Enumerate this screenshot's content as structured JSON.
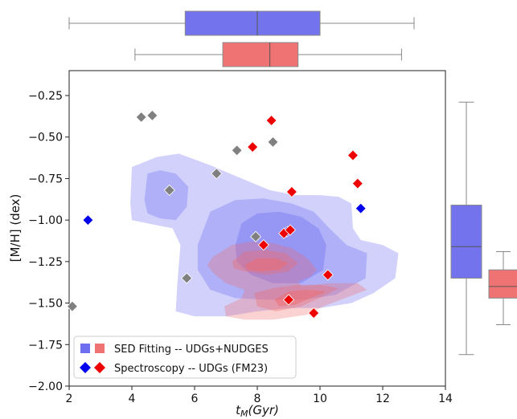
{
  "chart_data": {
    "type": "scatter",
    "xlabel_main": "t",
    "xlabel_sub": "M",
    "xlabel_unit": "(Gyr)",
    "ylabel": "[M/H] (dex)",
    "xlim": [
      2,
      14
    ],
    "ylim": [
      -2.0,
      -0.1
    ],
    "xticks": [
      2,
      4,
      6,
      8,
      10,
      12,
      14
    ],
    "yticks": [
      -2.0,
      -1.75,
      -1.5,
      -1.25,
      -1.0,
      -0.75,
      -0.5,
      -0.25
    ],
    "xtick_labels": [
      "2",
      "4",
      "6",
      "8",
      "10",
      "12",
      "14"
    ],
    "ytick_labels": [
      "−2.00",
      "−1.75",
      "−1.50",
      "−1.25",
      "−1.00",
      "−0.75",
      "−0.50",
      "−0.25"
    ],
    "grid": false,
    "legend_position": "bottom-left",
    "legend": [
      {
        "label": "SED Fitting -- UDGs+NUDGES",
        "marker": "square-pair",
        "colors": [
          "#6e6ef0",
          "#ef7373"
        ]
      },
      {
        "label": "Spectroscopy -- UDGs (FM23)",
        "marker": "diamond-pair",
        "colors": [
          "#0000ee",
          "#ee0000"
        ]
      }
    ],
    "colors": {
      "blue": "#0000ee",
      "red": "#ee0000",
      "gray": "#808080",
      "kde_blue": "#5b5bf0",
      "kde_red": "#f06b6b",
      "box_blue": "#7373ee",
      "box_red": "#ef7373"
    },
    "series": [
      {
        "color": "gray",
        "points": [
          [
            2.1,
            -1.52
          ],
          [
            4.3,
            -0.38
          ],
          [
            4.65,
            -0.37
          ],
          [
            5.2,
            -0.82
          ],
          [
            5.75,
            -1.35
          ],
          [
            6.7,
            -0.72
          ],
          [
            7.35,
            -0.58
          ],
          [
            7.95,
            -1.1
          ],
          [
            8.5,
            -0.53
          ]
        ]
      },
      {
        "color": "blue",
        "points": [
          [
            2.6,
            -1.0
          ],
          [
            8.95,
            -1.07
          ],
          [
            11.3,
            -0.93
          ]
        ]
      },
      {
        "color": "red",
        "points": [
          [
            7.85,
            -0.56
          ],
          [
            8.2,
            -1.15
          ],
          [
            8.45,
            -0.4
          ],
          [
            8.85,
            -1.08
          ],
          [
            9.05,
            -1.06
          ],
          [
            9.1,
            -0.83
          ],
          [
            9.0,
            -1.48
          ],
          [
            9.8,
            -1.56
          ],
          [
            10.25,
            -1.33
          ],
          [
            11.05,
            -0.61
          ],
          [
            11.2,
            -0.78
          ]
        ]
      }
    ],
    "kde_blue_levels": [
      {
        "alpha": 0.28,
        "polygon": [
          [
            3.95,
            -0.9
          ],
          [
            4.0,
            -0.68
          ],
          [
            4.8,
            -0.62
          ],
          [
            5.5,
            -0.6
          ],
          [
            6.5,
            -0.67
          ],
          [
            7.5,
            -0.75
          ],
          [
            8.4,
            -0.82
          ],
          [
            9.2,
            -0.85
          ],
          [
            10.0,
            -0.85
          ],
          [
            10.6,
            -0.86
          ],
          [
            11.0,
            -0.9
          ],
          [
            11.05,
            -1.05
          ],
          [
            11.3,
            -1.12
          ],
          [
            12.0,
            -1.15
          ],
          [
            12.5,
            -1.2
          ],
          [
            12.4,
            -1.35
          ],
          [
            11.7,
            -1.44
          ],
          [
            11.0,
            -1.5
          ],
          [
            10.0,
            -1.53
          ],
          [
            9.0,
            -1.53
          ],
          [
            8.0,
            -1.55
          ],
          [
            7.0,
            -1.58
          ],
          [
            6.0,
            -1.58
          ],
          [
            5.4,
            -1.55
          ],
          [
            5.45,
            -1.38
          ],
          [
            5.55,
            -1.15
          ],
          [
            5.3,
            -1.05
          ],
          [
            4.5,
            -1.02
          ],
          [
            4.0,
            -1.0
          ]
        ]
      },
      {
        "alpha": 0.28,
        "polygon": [
          [
            4.4,
            -0.88
          ],
          [
            4.5,
            -0.72
          ],
          [
            4.9,
            -0.7
          ],
          [
            5.4,
            -0.72
          ],
          [
            5.8,
            -0.8
          ],
          [
            5.75,
            -0.92
          ],
          [
            5.4,
            -1.0
          ],
          [
            4.9,
            -0.99
          ],
          [
            4.5,
            -0.96
          ]
        ]
      },
      {
        "alpha": 0.28,
        "polygon": [
          [
            6.1,
            -1.15
          ],
          [
            6.5,
            -0.95
          ],
          [
            7.3,
            -0.88
          ],
          [
            8.2,
            -0.87
          ],
          [
            9.1,
            -0.9
          ],
          [
            9.8,
            -0.95
          ],
          [
            10.3,
            -1.05
          ],
          [
            10.85,
            -1.15
          ],
          [
            11.5,
            -1.2
          ],
          [
            11.45,
            -1.35
          ],
          [
            10.5,
            -1.45
          ],
          [
            9.5,
            -1.48
          ],
          [
            8.3,
            -1.48
          ],
          [
            7.3,
            -1.47
          ],
          [
            6.5,
            -1.42
          ],
          [
            6.1,
            -1.3
          ]
        ]
      },
      {
        "alpha": 0.3,
        "polygon": [
          [
            7.3,
            -1.15
          ],
          [
            7.5,
            -1.02
          ],
          [
            8.0,
            -0.96
          ],
          [
            8.7,
            -0.95
          ],
          [
            9.4,
            -0.98
          ],
          [
            9.95,
            -1.05
          ],
          [
            10.2,
            -1.15
          ],
          [
            10.1,
            -1.3
          ],
          [
            9.4,
            -1.38
          ],
          [
            8.5,
            -1.38
          ],
          [
            7.8,
            -1.33
          ],
          [
            7.35,
            -1.25
          ]
        ]
      }
    ],
    "kde_red_levels": [
      {
        "alpha": 0.3,
        "polygon": [
          [
            6.6,
            -1.22
          ],
          [
            7.2,
            -1.15
          ],
          [
            7.8,
            -1.13
          ],
          [
            8.5,
            -1.14
          ],
          [
            9.1,
            -1.17
          ],
          [
            9.6,
            -1.23
          ],
          [
            9.9,
            -1.3
          ],
          [
            9.7,
            -1.34
          ],
          [
            9.3,
            -1.37
          ],
          [
            9.4,
            -1.4
          ],
          [
            10.3,
            -1.38
          ],
          [
            11.2,
            -1.38
          ],
          [
            11.5,
            -1.42
          ],
          [
            10.8,
            -1.47
          ],
          [
            10.1,
            -1.52
          ],
          [
            9.6,
            -1.57
          ],
          [
            8.5,
            -1.6
          ],
          [
            7.6,
            -1.6
          ],
          [
            7.0,
            -1.58
          ],
          [
            6.95,
            -1.52
          ],
          [
            7.5,
            -1.47
          ],
          [
            7.6,
            -1.42
          ],
          [
            7.0,
            -1.38
          ],
          [
            6.6,
            -1.32
          ],
          [
            6.4,
            -1.27
          ]
        ]
      },
      {
        "alpha": 0.35,
        "polygon": [
          [
            7.2,
            -1.25
          ],
          [
            7.6,
            -1.19
          ],
          [
            8.3,
            -1.18
          ],
          [
            8.9,
            -1.2
          ],
          [
            9.3,
            -1.26
          ],
          [
            9.0,
            -1.31
          ],
          [
            8.3,
            -1.33
          ],
          [
            7.6,
            -1.31
          ],
          [
            7.25,
            -1.29
          ]
        ]
      },
      {
        "alpha": 0.35,
        "polygon": [
          [
            7.9,
            -1.44
          ],
          [
            8.5,
            -1.41
          ],
          [
            9.3,
            -1.39
          ],
          [
            10.0,
            -1.39
          ],
          [
            10.6,
            -1.41
          ],
          [
            10.1,
            -1.46
          ],
          [
            9.4,
            -1.52
          ],
          [
            8.6,
            -1.55
          ],
          [
            8.0,
            -1.52
          ]
        ]
      },
      {
        "alpha": 0.5,
        "polygon": [
          [
            7.6,
            -1.27
          ],
          [
            8.0,
            -1.23
          ],
          [
            8.6,
            -1.23
          ],
          [
            9.0,
            -1.26
          ],
          [
            8.7,
            -1.3
          ],
          [
            8.1,
            -1.31
          ],
          [
            7.7,
            -1.3
          ]
        ]
      },
      {
        "alpha": 0.5,
        "polygon": [
          [
            8.55,
            -1.48
          ],
          [
            9.0,
            -1.43
          ],
          [
            9.6,
            -1.42
          ],
          [
            10.2,
            -1.43
          ],
          [
            9.7,
            -1.47
          ],
          [
            9.2,
            -1.51
          ],
          [
            8.7,
            -1.52
          ]
        ]
      }
    ],
    "box_top_blue": {
      "whisker_low": 2.0,
      "q1": 5.7,
      "median": 8.0,
      "q3": 10.0,
      "whisker_high": 13.0
    },
    "box_top_red": {
      "whisker_low": 4.1,
      "q1": 6.9,
      "median": 8.4,
      "q3": 9.3,
      "whisker_high": 12.6
    },
    "box_right_blue": {
      "whisker_low": -1.81,
      "q1": -1.35,
      "median": -1.16,
      "q3": -0.91,
      "whisker_high": -0.29
    },
    "box_right_red": {
      "whisker_low": -1.63,
      "q1": -1.47,
      "median": -1.4,
      "q3": -1.3,
      "whisker_high": -1.19
    }
  }
}
